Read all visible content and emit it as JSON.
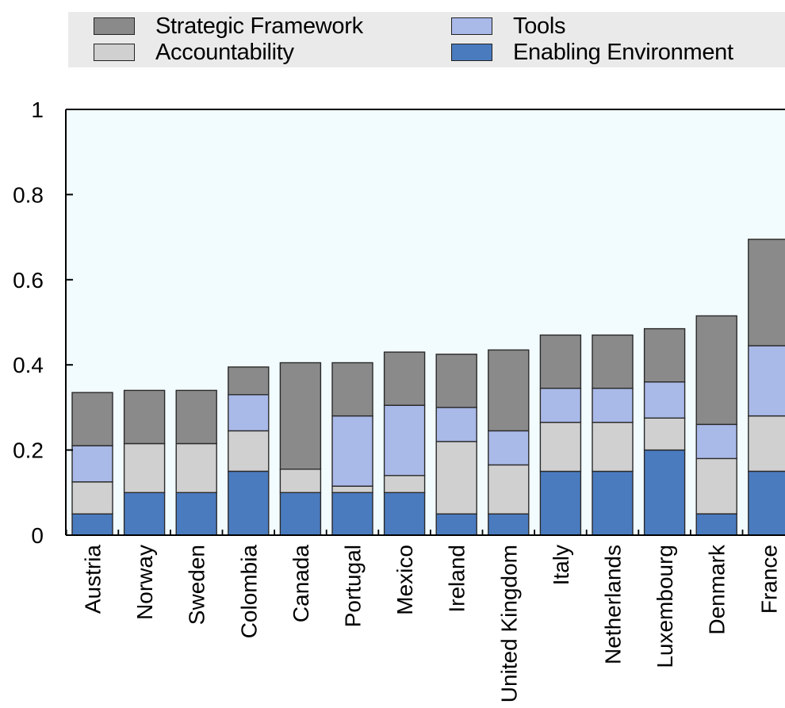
{
  "chart_data": {
    "type": "bar",
    "stacked": true,
    "title": "",
    "xlabel": "",
    "ylabel": "",
    "ylim": [
      0,
      1
    ],
    "yticks": [
      "0",
      "0.2",
      "0.4",
      "0.6",
      "0.8",
      "1"
    ],
    "ytick_values": [
      0,
      0.2,
      0.4,
      0.6,
      0.8,
      1
    ],
    "grid": false,
    "legend_position": "top",
    "categories": [
      "Austria",
      "Norway",
      "Sweden",
      "Colombia",
      "Canada",
      "Portugal",
      "Mexico",
      "Ireland",
      "United Kingdom",
      "Italy",
      "Netherlands",
      "Luxembourg",
      "Denmark",
      "France"
    ],
    "series": [
      {
        "name": "Enabling Environment",
        "color": "#4a7bbf",
        "values": [
          0.05,
          0.1,
          0.1,
          0.15,
          0.1,
          0.1,
          0.1,
          0.05,
          0.05,
          0.15,
          0.15,
          0.2,
          0.05,
          0.15
        ]
      },
      {
        "name": "Accountability",
        "color": "#d0d0d0",
        "values": [
          0.075,
          0.115,
          0.115,
          0.095,
          0.055,
          0.015,
          0.04,
          0.17,
          0.115,
          0.115,
          0.115,
          0.075,
          0.13,
          0.13
        ]
      },
      {
        "name": "Tools",
        "color": "#a9b9e8",
        "values": [
          0.085,
          0.0,
          0.0,
          0.085,
          0.0,
          0.165,
          0.165,
          0.08,
          0.08,
          0.08,
          0.08,
          0.085,
          0.08,
          0.165
        ]
      },
      {
        "name": "Strategic Framework",
        "color": "#8a8a8a",
        "values": [
          0.125,
          0.125,
          0.125,
          0.065,
          0.25,
          0.125,
          0.125,
          0.125,
          0.19,
          0.125,
          0.125,
          0.125,
          0.255,
          0.25
        ]
      }
    ],
    "legend": [
      {
        "label": "Strategic Framework",
        "color": "#8a8a8a"
      },
      {
        "label": "Accountability",
        "color": "#d0d0d0"
      },
      {
        "label": "Tools",
        "color": "#a9b9e8"
      },
      {
        "label": "Enabling Environment",
        "color": "#4a7bbf"
      }
    ],
    "plot_background": "#f2fcff"
  }
}
